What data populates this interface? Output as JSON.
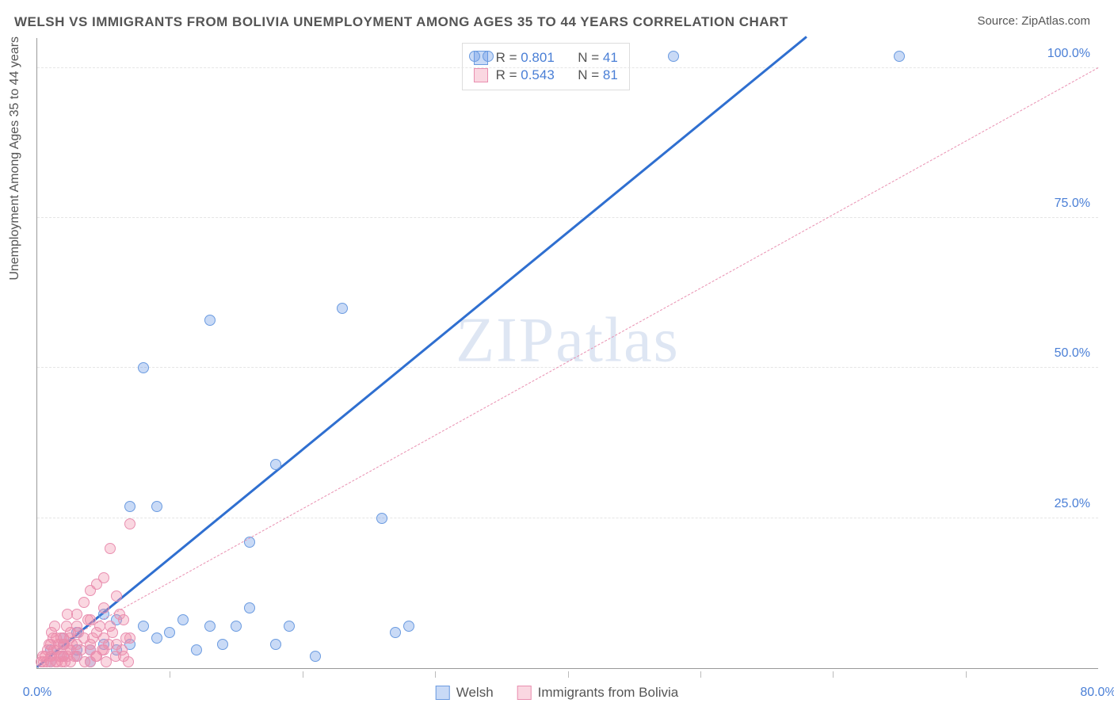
{
  "title": "WELSH VS IMMIGRANTS FROM BOLIVIA UNEMPLOYMENT AMONG AGES 35 TO 44 YEARS CORRELATION CHART",
  "source": "Source: ZipAtlas.com",
  "ylabel": "Unemployment Among Ages 35 to 44 years",
  "watermark_a": "ZIP",
  "watermark_b": "atlas",
  "chart": {
    "type": "scatter",
    "xlim": [
      0,
      80
    ],
    "ylim": [
      0,
      105
    ],
    "xticks": [
      0,
      80
    ],
    "xtick_labels": [
      "0.0%",
      "80.0%"
    ],
    "xminor": [
      10,
      20,
      30,
      40,
      50,
      60,
      70
    ],
    "yticks": [
      25,
      50,
      75,
      100
    ],
    "ytick_labels": [
      "25.0%",
      "50.0%",
      "75.0%",
      "100.0%"
    ],
    "grid_color": "#e5e5e5",
    "background": "#ffffff",
    "text_color": "#555555",
    "axis_value_color": "#4a7fd6"
  },
  "series": [
    {
      "name": "Welsh",
      "color_fill": "rgba(100,150,230,0.35)",
      "color_stroke": "#6b9be0",
      "trend_color": "#2f6fd0",
      "trend_dash": "solid",
      "trend_width": 3,
      "r": "0.801",
      "n": "41",
      "trend": {
        "x1": 0,
        "y1": 0,
        "x2": 58,
        "y2": 105
      },
      "points": [
        [
          1,
          1
        ],
        [
          2,
          2
        ],
        [
          3,
          2
        ],
        [
          2,
          4
        ],
        [
          4,
          3
        ],
        [
          5,
          4
        ],
        [
          3,
          6
        ],
        [
          6,
          3
        ],
        [
          4,
          1
        ],
        [
          1,
          3
        ],
        [
          7,
          4
        ],
        [
          8,
          7
        ],
        [
          6,
          8
        ],
        [
          9,
          5
        ],
        [
          11,
          8
        ],
        [
          13,
          7
        ],
        [
          15,
          7
        ],
        [
          18,
          4
        ],
        [
          14,
          4
        ],
        [
          10,
          6
        ],
        [
          19,
          7
        ],
        [
          21,
          2
        ],
        [
          27,
          6
        ],
        [
          28,
          7
        ],
        [
          7,
          27
        ],
        [
          9,
          27
        ],
        [
          16,
          21
        ],
        [
          26,
          25
        ],
        [
          8,
          50
        ],
        [
          13,
          58
        ],
        [
          23,
          60
        ],
        [
          18,
          34
        ],
        [
          33,
          102
        ],
        [
          34,
          102
        ],
        [
          48,
          102
        ],
        [
          65,
          102
        ],
        [
          5,
          9
        ],
        [
          12,
          3
        ],
        [
          16,
          10
        ],
        [
          3,
          3
        ],
        [
          2,
          5
        ]
      ]
    },
    {
      "name": "Immigrants from Bolivia",
      "color_fill": "rgba(240,140,170,0.35)",
      "color_stroke": "#e98fb0",
      "trend_color": "#e98fb0",
      "trend_dash": "dashed",
      "trend_width": 1.5,
      "r": "0.543",
      "n": "81",
      "trend": {
        "x1": 0,
        "y1": 2,
        "x2": 80,
        "y2": 100
      },
      "points": [
        [
          0.5,
          1
        ],
        [
          1,
          1
        ],
        [
          1,
          2
        ],
        [
          1.5,
          3
        ],
        [
          2,
          2
        ],
        [
          2,
          4
        ],
        [
          2,
          5
        ],
        [
          2.5,
          1
        ],
        [
          2.5,
          3
        ],
        [
          2.5,
          6
        ],
        [
          3,
          2
        ],
        [
          3,
          4
        ],
        [
          3,
          7
        ],
        [
          3,
          9
        ],
        [
          3.5,
          5
        ],
        [
          3.5,
          11
        ],
        [
          4,
          1
        ],
        [
          4,
          3
        ],
        [
          4,
          4
        ],
        [
          4,
          8
        ],
        [
          4,
          13
        ],
        [
          4.5,
          2
        ],
        [
          4.5,
          6
        ],
        [
          4.5,
          14
        ],
        [
          5,
          3
        ],
        [
          5,
          5
        ],
        [
          5,
          10
        ],
        [
          5,
          15
        ],
        [
          5.5,
          7
        ],
        [
          5.5,
          20
        ],
        [
          6,
          4
        ],
        [
          6,
          12
        ],
        [
          6.5,
          2
        ],
        [
          6.5,
          8
        ],
        [
          7,
          5
        ],
        [
          7,
          24
        ],
        [
          1,
          4
        ],
        [
          1.2,
          5
        ],
        [
          1.5,
          1
        ],
        [
          1.8,
          2
        ],
        [
          2.2,
          7
        ],
        [
          2.4,
          3
        ],
        [
          0.8,
          3
        ],
        [
          0.6,
          2
        ],
        [
          1.1,
          6
        ],
        [
          1.3,
          7
        ],
        [
          1.4,
          1
        ],
        [
          1.6,
          4
        ],
        [
          1.8,
          5
        ],
        [
          2.1,
          1
        ],
        [
          2.3,
          9
        ],
        [
          2.6,
          4
        ],
        [
          2.8,
          2
        ],
        [
          3.1,
          6
        ],
        [
          3.3,
          3
        ],
        [
          3.6,
          1
        ],
        [
          3.8,
          8
        ],
        [
          4.2,
          5
        ],
        [
          4.4,
          2
        ],
        [
          4.7,
          7
        ],
        [
          4.9,
          3
        ],
        [
          5.2,
          1
        ],
        [
          5.4,
          4
        ],
        [
          5.7,
          6
        ],
        [
          5.9,
          2
        ],
        [
          6.2,
          9
        ],
        [
          6.4,
          3
        ],
        [
          6.7,
          5
        ],
        [
          6.9,
          1
        ],
        [
          0.3,
          1
        ],
        [
          0.4,
          2
        ],
        [
          0.7,
          1
        ],
        [
          0.9,
          4
        ],
        [
          1.05,
          2
        ],
        [
          1.25,
          3
        ],
        [
          1.45,
          5
        ],
        [
          1.65,
          2
        ],
        [
          1.85,
          1
        ],
        [
          2.05,
          4
        ],
        [
          2.25,
          2
        ],
        [
          2.45,
          5
        ]
      ]
    }
  ],
  "legend_bottom": [
    {
      "label": "Welsh",
      "fill": "rgba(100,150,230,0.35)",
      "stroke": "#6b9be0"
    },
    {
      "label": "Immigrants from Bolivia",
      "fill": "rgba(240,140,170,0.35)",
      "stroke": "#e98fb0"
    }
  ],
  "legend_top_labels": {
    "r": "R =",
    "n": "N ="
  }
}
